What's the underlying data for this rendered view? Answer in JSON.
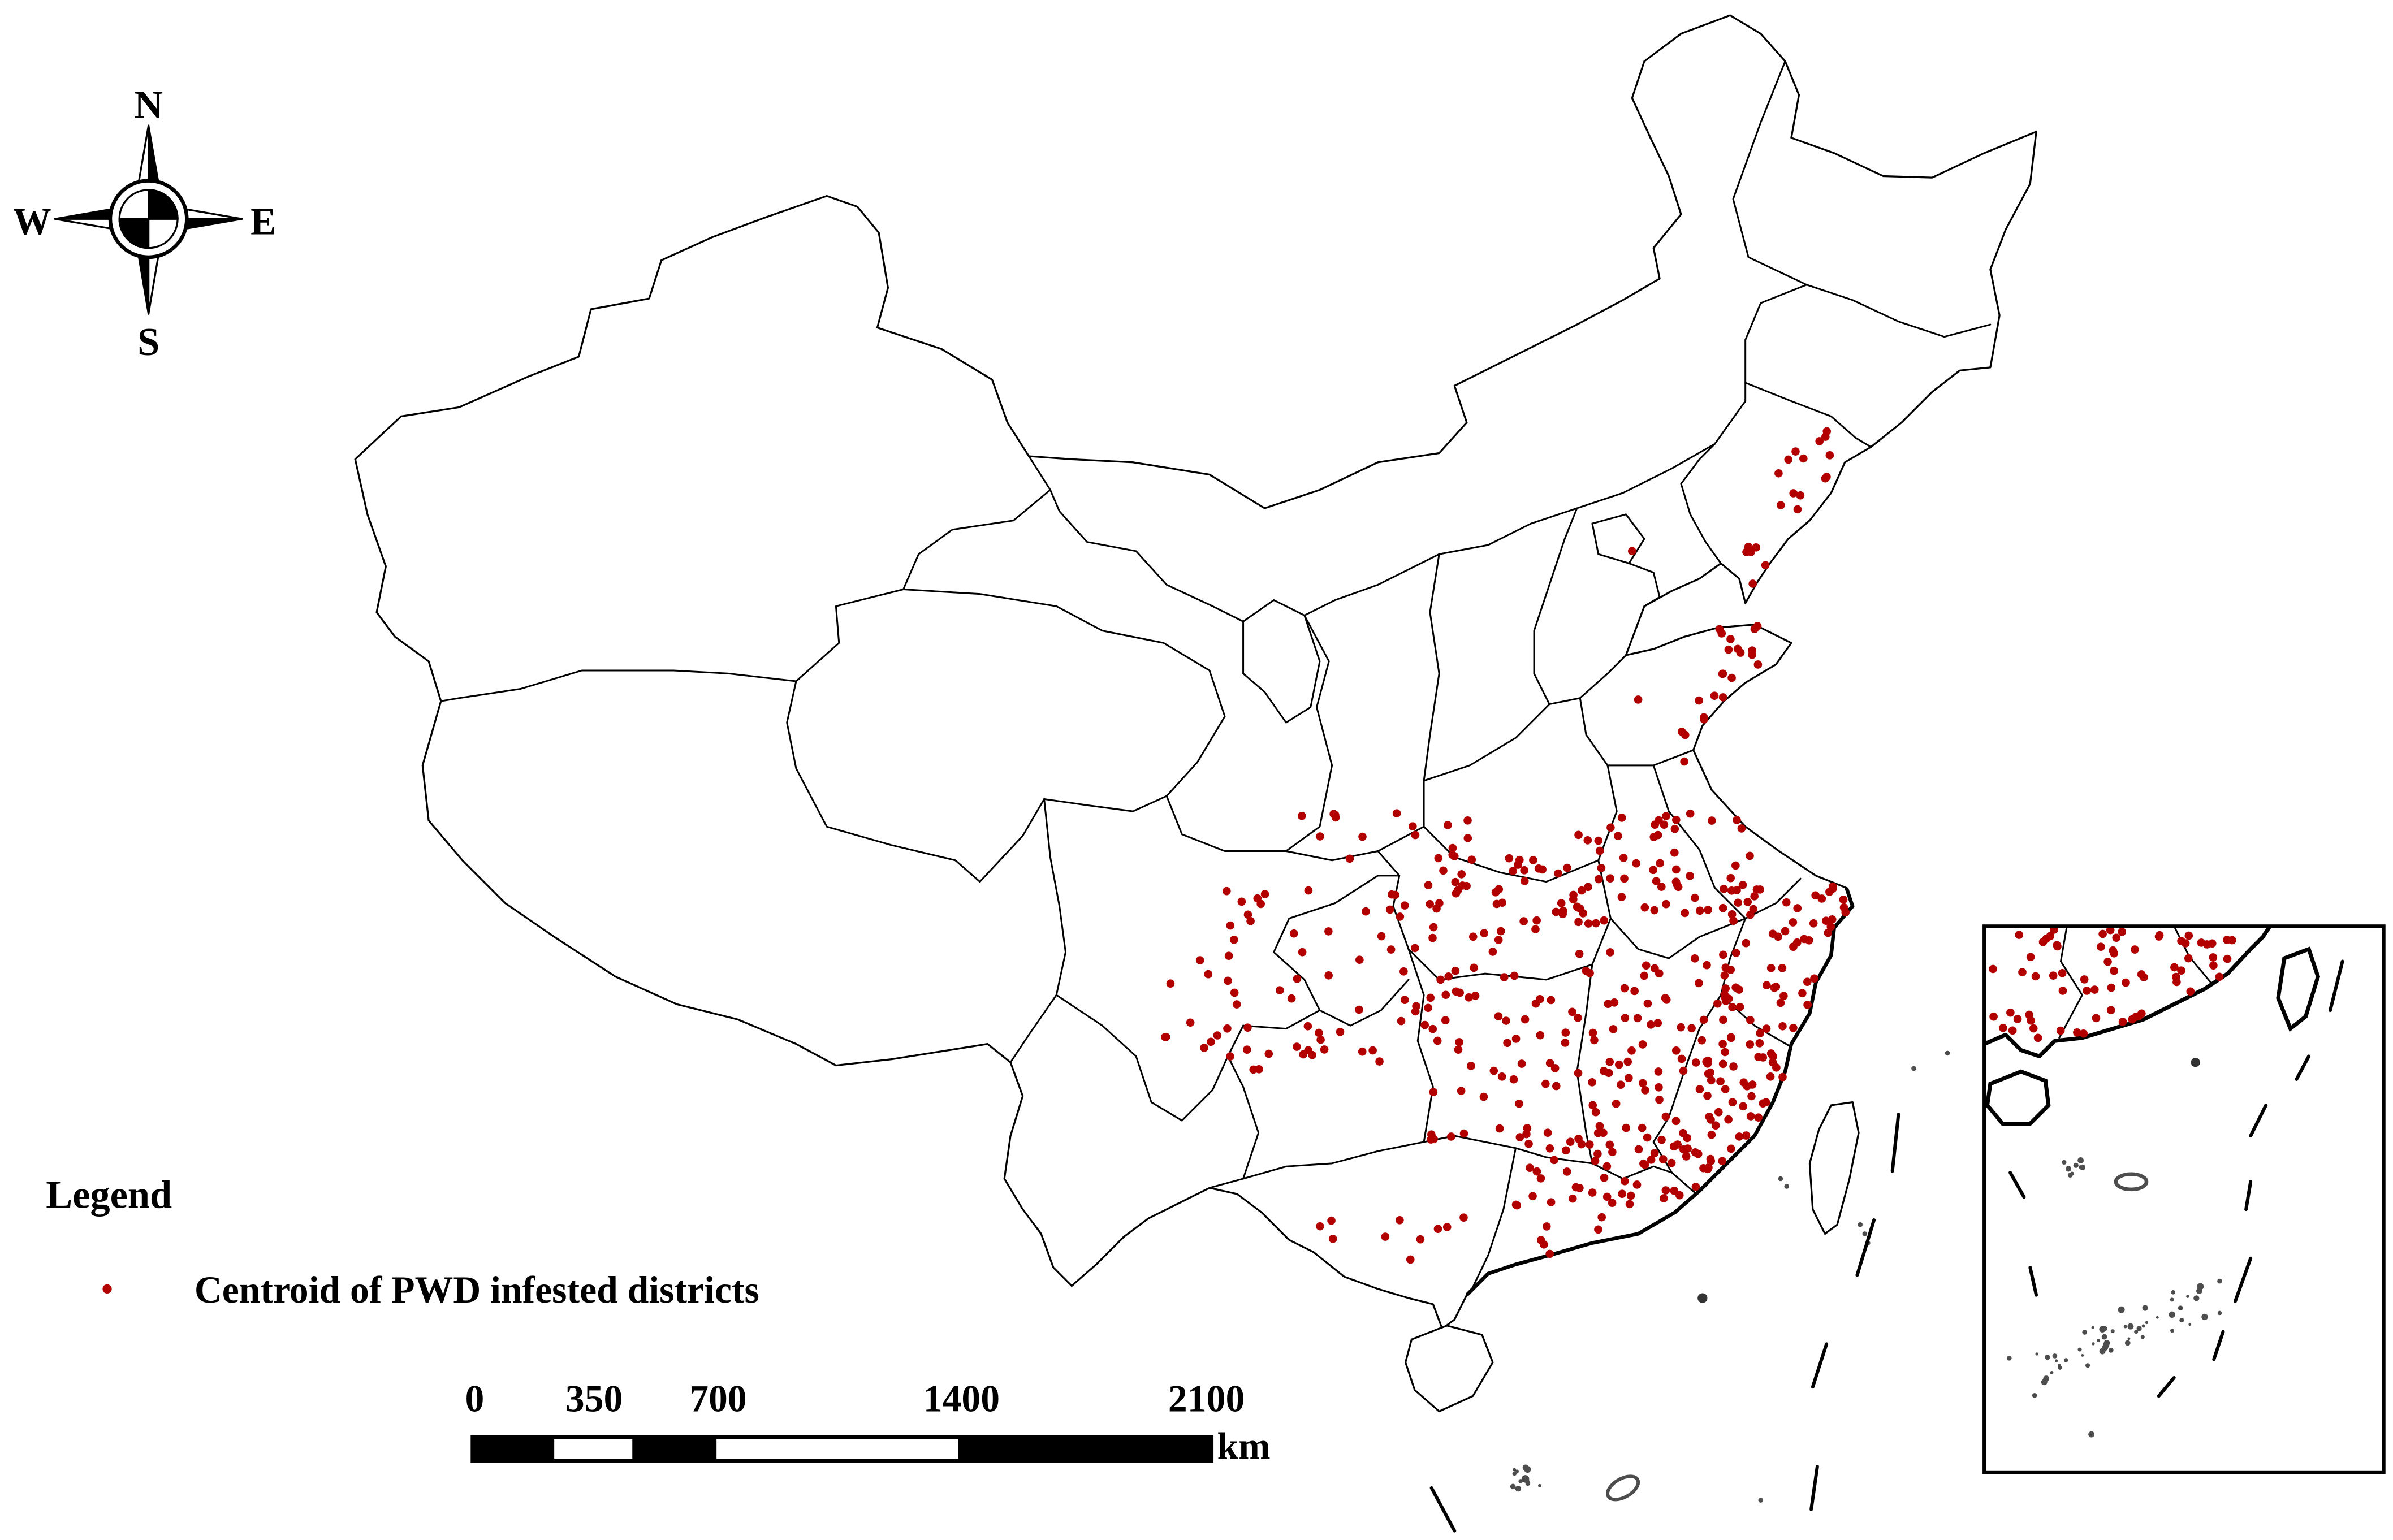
{
  "compass": {
    "north": "N",
    "south": "S",
    "west": "W",
    "east": "E"
  },
  "legend": {
    "title": "Legend",
    "items": [
      {
        "label": "Centroid of PWD infested districts",
        "symbol": "dot",
        "color": "#b20000"
      }
    ]
  },
  "scale_bar": {
    "labels": [
      "0",
      "350",
      "700",
      "1400",
      "2100"
    ],
    "unit": "km"
  },
  "colors": {
    "boundary": "#000000",
    "islands": "#4d4d4d",
    "background": "#ffffff"
  }
}
